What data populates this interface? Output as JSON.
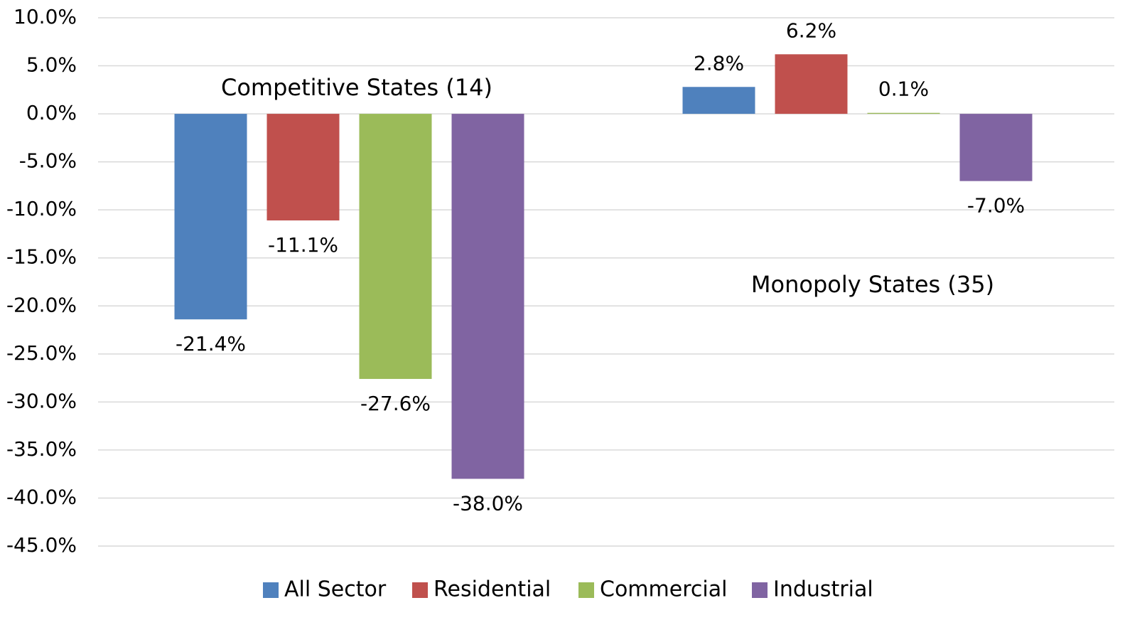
{
  "chart_data": {
    "type": "bar",
    "categories": [
      "Competitive States (14)",
      "Monopoly States (35)"
    ],
    "series": [
      {
        "name": "All Sector",
        "color": "#4f81bd",
        "values": [
          -21.4,
          2.8
        ],
        "value_labels": [
          "-21.4%",
          "2.8%"
        ]
      },
      {
        "name": "Residential",
        "color": "#c0504d",
        "values": [
          -11.1,
          6.2
        ],
        "value_labels": [
          "-11.1%",
          "6.2%"
        ]
      },
      {
        "name": "Commercial",
        "color": "#9bbb59",
        "values": [
          -27.6,
          0.1
        ],
        "value_labels": [
          "-27.6%",
          "0.1%"
        ]
      },
      {
        "name": "Industrial",
        "color": "#8064a2",
        "values": [
          -38.0,
          -7.0
        ],
        "value_labels": [
          "-38.0%",
          "-7.0%"
        ]
      }
    ],
    "ylim": [
      -45,
      10
    ],
    "yticks": [
      {
        "value": 10,
        "label": "10.0%"
      },
      {
        "value": 5,
        "label": "5.0%"
      },
      {
        "value": 0,
        "label": "0.0%"
      },
      {
        "value": -5,
        "label": "-5.0%"
      },
      {
        "value": -10,
        "label": "-10.0%"
      },
      {
        "value": -15,
        "label": "-15.0%"
      },
      {
        "value": -20,
        "label": "-20.0%"
      },
      {
        "value": -25,
        "label": "-25.0%"
      },
      {
        "value": -30,
        "label": "-30.0%"
      },
      {
        "value": -35,
        "label": "-35.0%"
      },
      {
        "value": -40,
        "label": "-40.0%"
      },
      {
        "value": -45,
        "label": "-45.0%"
      }
    ],
    "grid": true,
    "legend": "bottom"
  }
}
